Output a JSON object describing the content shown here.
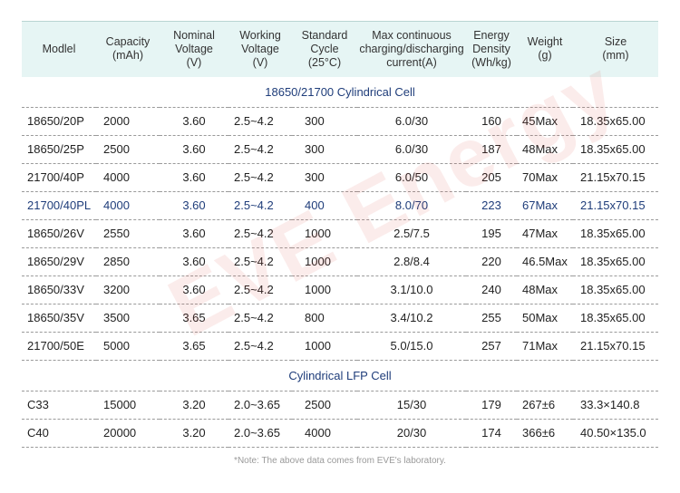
{
  "header": [
    {
      "lines": [
        "Modlel"
      ]
    },
    {
      "lines": [
        "Capacity",
        "(mAh)"
      ]
    },
    {
      "lines": [
        "Nominal",
        "Voltage",
        "(V)"
      ]
    },
    {
      "lines": [
        "Working",
        "Voltage",
        "(V)"
      ]
    },
    {
      "lines": [
        "Standard",
        "Cycle",
        "(25°C)"
      ]
    },
    {
      "lines": [
        "Max continuous",
        "charging/discharging",
        "current(A)"
      ]
    },
    {
      "lines": [
        "Energy",
        "Density",
        "(Wh/kg)"
      ]
    },
    {
      "lines": [
        "Weight",
        "(g)"
      ]
    },
    {
      "lines": [
        "Size",
        "(mm)"
      ]
    }
  ],
  "sections": [
    {
      "title": "18650/21700 Cylindrical Cell",
      "rows": [
        [
          "18650/20P",
          "2000",
          "3.60",
          "2.5~4.2",
          "300",
          "6.0/30",
          "160",
          "45Max",
          "18.35x65.00"
        ],
        [
          "18650/25P",
          "2500",
          "3.60",
          "2.5~4.2",
          "300",
          "6.0/30",
          "187",
          "48Max",
          "18.35x65.00"
        ],
        [
          "21700/40P",
          "4000",
          "3.60",
          "2.5~4.2",
          "300",
          "6.0/50",
          "205",
          "70Max",
          "21.15x70.15"
        ],
        [
          "21700/40PL",
          "4000",
          "3.60",
          "2.5~4.2",
          "400",
          "8.0/70",
          "223",
          "67Max",
          "21.15x70.15"
        ],
        [
          "18650/26V",
          "2550",
          "3.60",
          "2.5~4.2",
          "1000",
          "2.5/7.5",
          "195",
          "47Max",
          "18.35x65.00"
        ],
        [
          "18650/29V",
          "2850",
          "3.60",
          "2.5~4.2",
          "1000",
          "2.8/8.4",
          "220",
          "46.5Max",
          "18.35x65.00"
        ],
        [
          "18650/33V",
          "3200",
          "3.60",
          "2.5~4.2",
          "1000",
          "3.1/10.0",
          "240",
          "48Max",
          "18.35x65.00"
        ],
        [
          "18650/35V",
          "3500",
          "3.65",
          "2.5~4.2",
          "800",
          "3.4/10.2",
          "255",
          "50Max",
          "18.35x65.00"
        ],
        [
          "21700/50E",
          "5000",
          "3.65",
          "2.5~4.2",
          "1000",
          "5.0/15.0",
          "257",
          "71Max",
          "21.15x70.15"
        ]
      ],
      "highlight_row": 3
    },
    {
      "title": "Cylindrical LFP Cell",
      "rows": [
        [
          "C33",
          "15000",
          "3.20",
          "2.0~3.65",
          "2500",
          "15/30",
          "179",
          "267±6",
          "33.3×140.8"
        ],
        [
          "C40",
          "20000",
          "3.20",
          "2.0~3.65",
          "4000",
          "20/30",
          "174",
          "366±6",
          "40.50×135.0"
        ]
      ],
      "highlight_row": -1
    }
  ],
  "note": "*Note: The above data comes from EVE's laboratory.",
  "watermark": "EVE Energy",
  "colors": {
    "header_bg": "#e6f5f4",
    "section_text": "#1f3d7a",
    "watermark": "#dc463c"
  }
}
